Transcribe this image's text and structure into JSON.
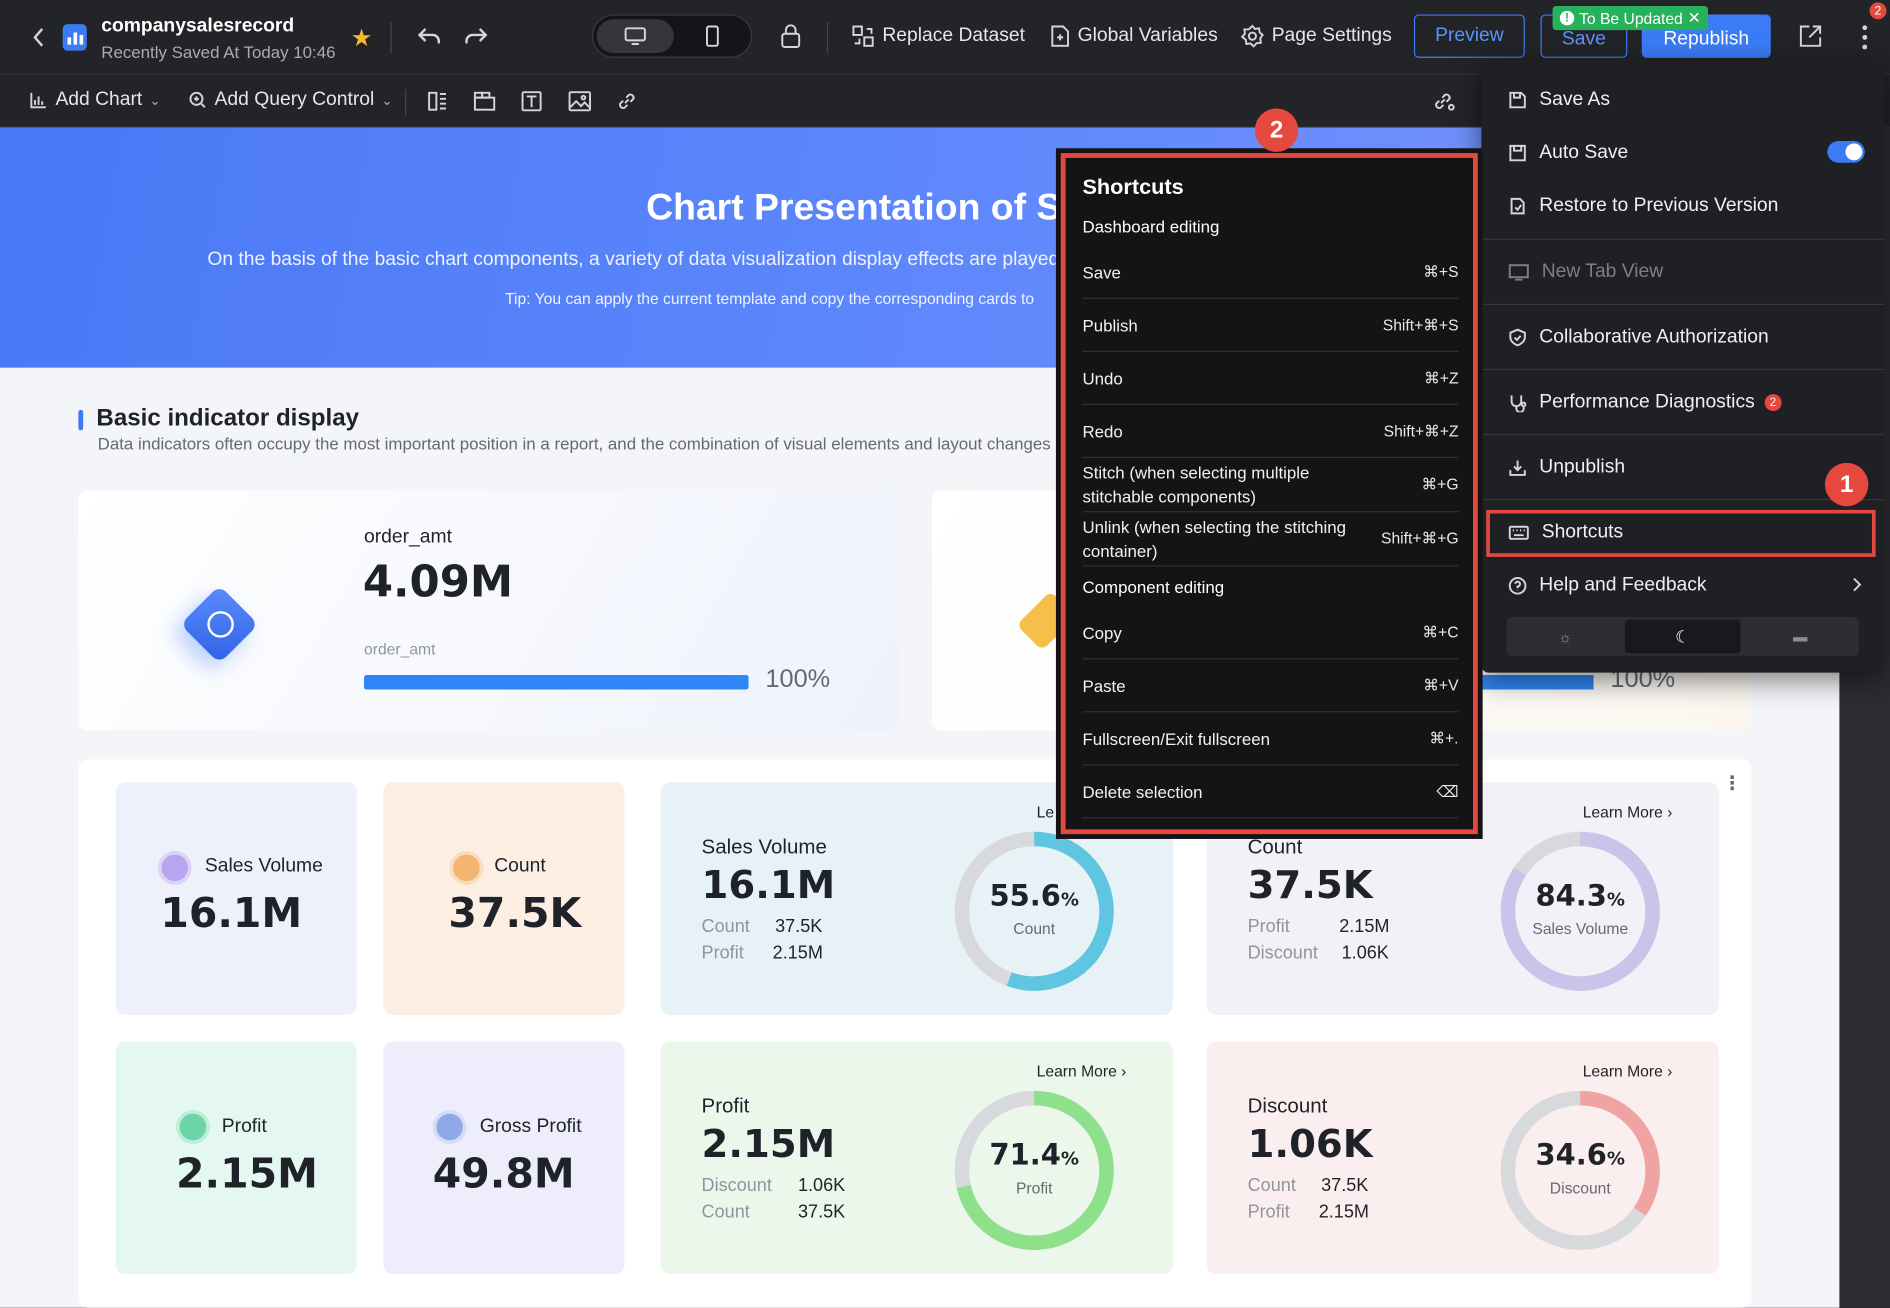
{
  "header": {
    "back_icon": "chevron-left-icon",
    "app_name": "companysalesrecord",
    "saved_status": "Recently Saved At Today 10:46",
    "replace_dataset": "Replace Dataset",
    "global_variables": "Global Variables",
    "page_settings": "Page Settings",
    "preview": "Preview",
    "save": "Save",
    "republish": "Republish",
    "update_tag": "To Be Updated",
    "more_badge": "2"
  },
  "toolbar": {
    "add_chart": "Add Chart",
    "add_query_control": "Add Query Control"
  },
  "banner": {
    "title": "Chart Presentation of S",
    "subtitle": "On the basis of the basic chart components, a variety of data visualization display effects are played o",
    "tip": "Tip: You can apply the current template and copy the corresponding cards to"
  },
  "section": {
    "title": "Basic indicator display",
    "desc": "Data indicators often occupy the most important position in a report, and the combination of visual elements and layout changes can r"
  },
  "kpi": {
    "label": "order_amt",
    "value": "4.09M",
    "sub_label": "order_amt",
    "progress_text": "100%",
    "progress": 1.0,
    "right_progress_text": "100%"
  },
  "small_cards": [
    {
      "label": "Sales Volume",
      "value": "16.1M",
      "color": "#eef1fb",
      "icon_color": "#b9a4f0"
    },
    {
      "label": "Count",
      "value": "37.5K",
      "color": "#fdeee4",
      "icon_color": "#f3b56f"
    },
    {
      "label": "Profit",
      "value": "2.15M",
      "color": "#e5f7f1",
      "icon_color": "#6fd3a8"
    },
    {
      "label": "Gross Profit",
      "value": "49.8M",
      "color": "#eeedfb",
      "icon_color": "#8fa9e6"
    }
  ],
  "ring_cards": [
    {
      "title": "Sales Volume",
      "value": "16.1M",
      "r1_label": "Count",
      "r1_value": "37.5K",
      "r2_label": "Profit",
      "r2_value": "2.15M",
      "pct": "55.6",
      "pct_unit": "%",
      "ring_label": "Count",
      "fraction": 0.556,
      "ring_color": "#5ec6e0",
      "bg": "#e7f2f7",
      "learn_more": "Le"
    },
    {
      "title": "Count",
      "value": "37.5K",
      "r1_label": "Profit",
      "r1_value": "2.15M",
      "r2_label": "Discount",
      "r2_value": "1.06K",
      "pct": "84.3",
      "pct_unit": "%",
      "ring_label": "Sales Volume",
      "fraction": 0.843,
      "ring_color": "#cbc3ea",
      "bg": "#f1f1f7",
      "learn_more": "Learn More"
    },
    {
      "title": "Profit",
      "value": "2.15M",
      "r1_label": "Discount",
      "r1_value": "1.06K",
      "r2_label": "Count",
      "r2_value": "37.5K",
      "pct": "71.4",
      "pct_unit": "%",
      "ring_label": "Profit",
      "fraction": 0.714,
      "ring_color": "#8fe08a",
      "bg": "#eaf7ea",
      "learn_more": "Learn More"
    },
    {
      "title": "Discount",
      "value": "1.06K",
      "r1_label": "Count",
      "r1_value": "37.5K",
      "r2_label": "Profit",
      "r2_value": "2.15M",
      "pct": "34.6",
      "pct_unit": "%",
      "ring_label": "Discount",
      "fraction": 0.346,
      "ring_color": "#f0a3a3",
      "bg": "#fbeeee",
      "learn_more": "Learn More"
    }
  ],
  "menu": {
    "items": [
      {
        "label": "Save As",
        "icon": "save-as-icon"
      },
      {
        "label": "Auto Save",
        "icon": "save-icon"
      },
      {
        "label": "Restore to Previous Version",
        "icon": "restore-icon"
      },
      {
        "label": "New Tab View",
        "icon": "monitor-icon"
      },
      {
        "label": "Collaborative Authorization",
        "icon": "shield-icon"
      },
      {
        "label": "Performance Diagnostics",
        "icon": "diagnostics-icon"
      },
      {
        "label": "Unpublish",
        "icon": "unpublish-icon"
      },
      {
        "label": "Shortcuts",
        "icon": "keyboard-icon"
      },
      {
        "label": "Help and Feedback",
        "icon": "help-icon"
      }
    ],
    "diagnostics_badge": "2",
    "auto_save_on": true
  },
  "shortcuts": {
    "title": "Shortcuts",
    "group1": "Dashboard editing",
    "group2": "Component editing",
    "rows1": [
      {
        "label": "Save",
        "key": "⌘+S"
      },
      {
        "label": "Publish",
        "key": "Shift+⌘+S"
      },
      {
        "label": "Undo",
        "key": "⌘+Z"
      },
      {
        "label": "Redo",
        "key": "Shift+⌘+Z"
      },
      {
        "label": "Stitch (when selecting multiple stitchable components)",
        "key": "⌘+G"
      },
      {
        "label": "Unlink (when selecting the stitching container)",
        "key": "Shift+⌘+G"
      }
    ],
    "rows2": [
      {
        "label": "Copy",
        "key": "⌘+C"
      },
      {
        "label": "Paste",
        "key": "⌘+V"
      },
      {
        "label": "Fullscreen/Exit fullscreen",
        "key": "⌘+."
      },
      {
        "label": "Delete selection",
        "key": "⌫"
      }
    ]
  },
  "annotations": {
    "badge1": "1",
    "badge2": "2"
  },
  "colors": {
    "accent": "#3b7cf6",
    "highlight": "#e5483f"
  }
}
